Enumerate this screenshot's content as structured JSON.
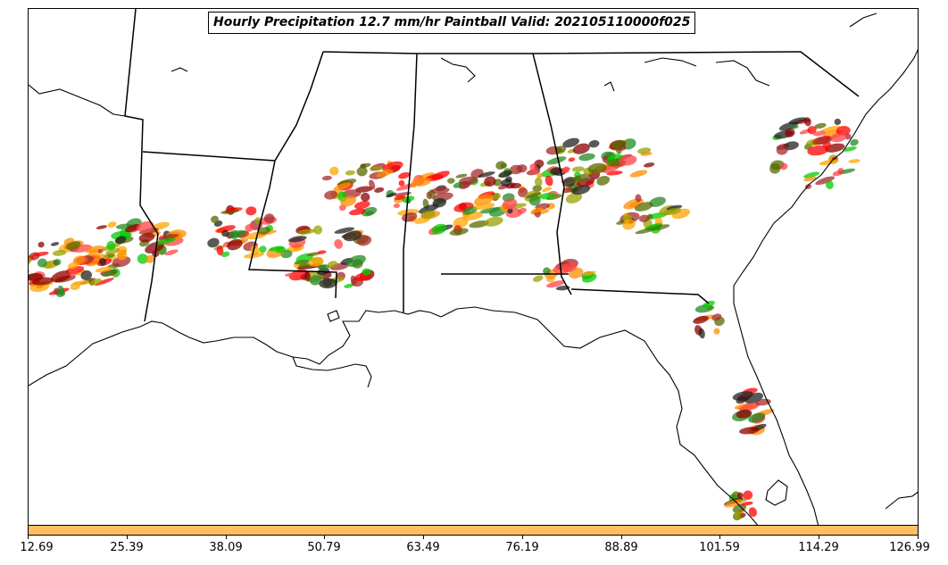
{
  "title": "Hourly Precipitation 12.7 mm/hr Paintball Valid: 202105110000f025",
  "colorbar": {
    "color": "#fdbf62",
    "ticks": [
      "12.69",
      "25.39",
      "38.09",
      "50.79",
      "63.49",
      "76.19",
      "88.89",
      "101.59",
      "114.29",
      "126.99"
    ]
  },
  "paintball_colors": [
    "#ff0000",
    "#ff8c00",
    "#ffa500",
    "#9aa000",
    "#556b00",
    "#00cc00",
    "#228b22",
    "#a52a2a",
    "#8b0000",
    "#222222",
    "#ff4444"
  ],
  "map_features": [
    "coastline",
    "state-borders",
    "precipitation-blobs"
  ]
}
